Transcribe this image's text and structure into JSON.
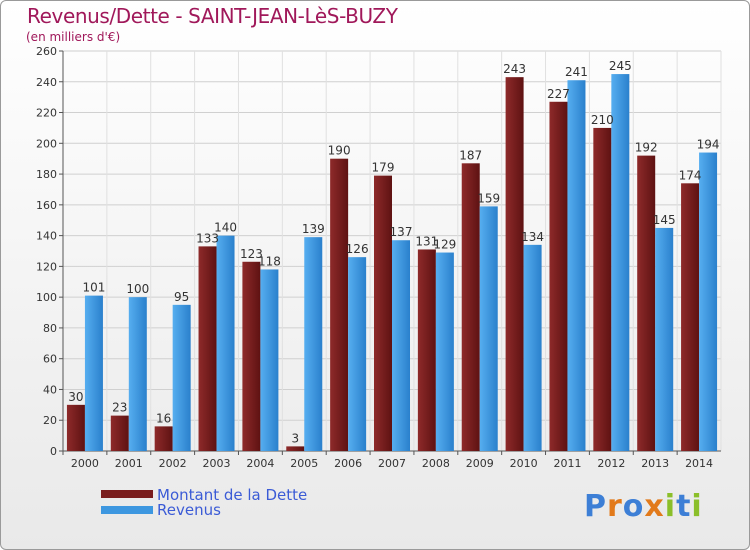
{
  "title": "Revenus/Dette - SAINT-JEAN-LèS-BUZY",
  "subtitle": "(en milliers d'€)",
  "logo_text": "Proxiti",
  "colors": {
    "dette": "#7a1d1d",
    "revenus": "#3d97e0",
    "accent": "#a0185a",
    "legend_text": "#3b5bd6"
  },
  "chart_data": {
    "type": "bar",
    "categories": [
      "2000",
      "2001",
      "2002",
      "2003",
      "2004",
      "2005",
      "2006",
      "2007",
      "2008",
      "2009",
      "2010",
      "2011",
      "2012",
      "2013",
      "2014"
    ],
    "series": [
      {
        "name": "Montant de la Dette",
        "values": [
          30,
          23,
          16,
          133,
          123,
          3,
          190,
          179,
          131,
          187,
          243,
          227,
          210,
          192,
          174
        ]
      },
      {
        "name": "Revenus",
        "values": [
          101,
          100,
          95,
          140,
          118,
          139,
          126,
          137,
          129,
          159,
          134,
          241,
          245,
          145,
          194
        ]
      }
    ],
    "yticks": [
      0,
      20,
      40,
      60,
      80,
      100,
      120,
      140,
      160,
      180,
      200,
      220,
      240,
      260
    ],
    "ylim": [
      0,
      260
    ],
    "grid": true,
    "legend_position": "bottom-left"
  }
}
